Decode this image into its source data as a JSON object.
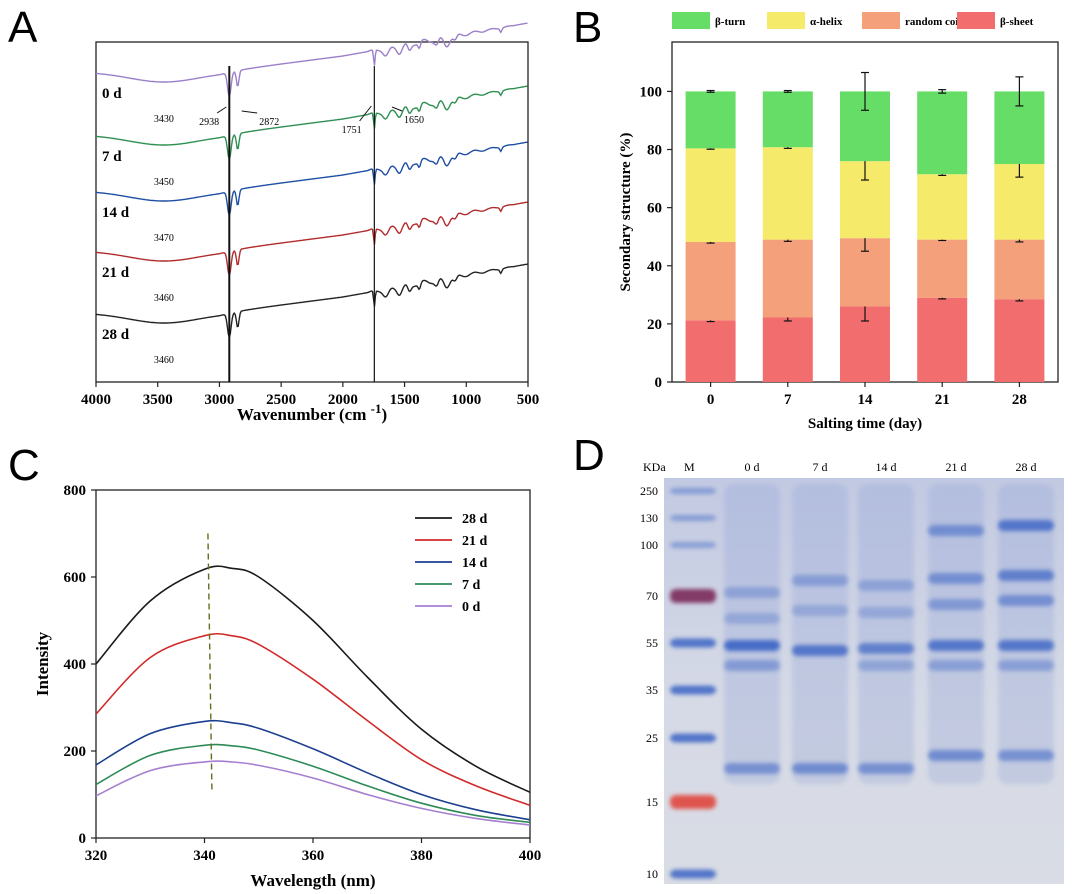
{
  "panels": [
    "A",
    "B",
    "C",
    "D"
  ],
  "chart_data": [
    {
      "panel": "A",
      "type": "line",
      "title": "",
      "xlabel": "Wavenumber (cm",
      "xlabel_sup": "-1",
      "xlabel_close": ")",
      "ylabel": "",
      "xlim": [
        4000,
        500
      ],
      "x_ticks": [
        4000,
        3500,
        3000,
        2500,
        2000,
        1500,
        1000,
        500
      ],
      "grid": false,
      "vertical_lines": [
        2920,
        1745
      ],
      "series": [
        {
          "name": "0 d",
          "color": "#9b7fc9",
          "offset": 0,
          "band_label": "3430"
        },
        {
          "name": "7 d",
          "color": "#2f8f52",
          "offset": 1,
          "band_label": "3450"
        },
        {
          "name": "14 d",
          "color": "#1e4fa3",
          "offset": 2,
          "band_label": "3470"
        },
        {
          "name": "21 d",
          "color": "#b22b2b",
          "offset": 3,
          "band_label": "3460"
        },
        {
          "name": "28 d",
          "color": "#222222",
          "offset": 4,
          "band_label": "3460"
        }
      ],
      "peak_annotations": [
        "2938",
        "2872",
        "1751",
        "1650"
      ]
    },
    {
      "panel": "B",
      "type": "bar",
      "stacked": true,
      "title": "",
      "xlabel": "Salting time (day)",
      "ylabel": "Secondary structure (%)",
      "ylim": [
        0,
        100
      ],
      "y_ticks": [
        0,
        20,
        40,
        60,
        80,
        100
      ],
      "categories": [
        "0",
        "7",
        "14",
        "21",
        "28"
      ],
      "legend_position": "top",
      "legend_order": [
        "β-turn",
        "α-helix",
        "random coil",
        "β-sheet"
      ],
      "series": [
        {
          "name": "β-sheet",
          "color": "#f26d6d",
          "values": [
            21.2,
            22.2,
            26.0,
            29.0,
            28.5
          ],
          "errors": [
            0.4,
            1.2,
            5.0,
            0.4,
            0.6
          ]
        },
        {
          "name": "random coil",
          "color": "#f4a07a",
          "values": [
            27.0,
            26.8,
            23.5,
            20.0,
            20.5
          ],
          "errors": [
            0.4,
            0.6,
            4.5,
            0.3,
            0.8
          ]
        },
        {
          "name": "α-helix",
          "color": "#f5ea6a",
          "values": [
            32.2,
            31.8,
            26.5,
            22.5,
            26.0
          ],
          "errors": [
            0.3,
            0.4,
            6.5,
            0.4,
            4.5
          ]
        },
        {
          "name": "β-turn",
          "color": "#66dd66",
          "values": [
            19.6,
            19.2,
            24.0,
            28.5,
            25.0
          ],
          "errors": [
            0.3,
            0.3,
            6.5,
            0.6,
            5.0
          ]
        }
      ]
    },
    {
      "panel": "C",
      "type": "line",
      "title": "",
      "xlabel": "Wavelength (nm)",
      "ylabel": "Intensity",
      "xlim": [
        320,
        400
      ],
      "ylim": [
        0,
        800
      ],
      "x_ticks": [
        320,
        340,
        360,
        380,
        400
      ],
      "y_ticks": [
        0,
        200,
        400,
        600,
        800
      ],
      "legend_position": "top-right",
      "dashed_marker_x": 341,
      "series": [
        {
          "name": "28 d",
          "color": "#1a1a1a",
          "x": [
            320,
            330,
            340,
            345,
            350,
            360,
            370,
            380,
            390,
            400
          ],
          "values": [
            400,
            545,
            618,
            620,
            600,
            500,
            370,
            250,
            165,
            105
          ]
        },
        {
          "name": "21 d",
          "color": "#d22a2a",
          "x": [
            320,
            330,
            340,
            345,
            350,
            360,
            370,
            380,
            390,
            400
          ],
          "values": [
            285,
            415,
            465,
            465,
            445,
            365,
            270,
            180,
            120,
            75
          ]
        },
        {
          "name": "14 d",
          "color": "#1c3f8f",
          "x": [
            320,
            330,
            340,
            345,
            350,
            360,
            370,
            380,
            390,
            400
          ],
          "values": [
            168,
            240,
            268,
            265,
            252,
            205,
            150,
            100,
            65,
            42
          ]
        },
        {
          "name": "7 d",
          "color": "#2e8b57",
          "x": [
            320,
            330,
            340,
            345,
            350,
            360,
            370,
            380,
            390,
            400
          ],
          "values": [
            123,
            190,
            213,
            212,
            202,
            165,
            120,
            80,
            52,
            36
          ]
        },
        {
          "name": "0 d",
          "color": "#a77fd1",
          "x": [
            320,
            330,
            340,
            345,
            350,
            360,
            370,
            380,
            390,
            400
          ],
          "values": [
            97,
            155,
            175,
            175,
            167,
            138,
            100,
            68,
            45,
            30
          ]
        }
      ]
    },
    {
      "panel": "D",
      "type": "gel",
      "unit_label": "KDa",
      "marker_label": "M",
      "lane_labels": [
        "0 d",
        "7 d",
        "14 d",
        "21 d",
        "28 d"
      ],
      "marker_sizes": [
        "250",
        "130",
        "100",
        "70",
        "55",
        "35",
        "25",
        "15",
        "10"
      ],
      "colors": {
        "gel": "#c9cfe2",
        "band": "#3a63c4",
        "marker_purple": "#7a2a5a",
        "marker_red": "#e0463c"
      }
    }
  ]
}
